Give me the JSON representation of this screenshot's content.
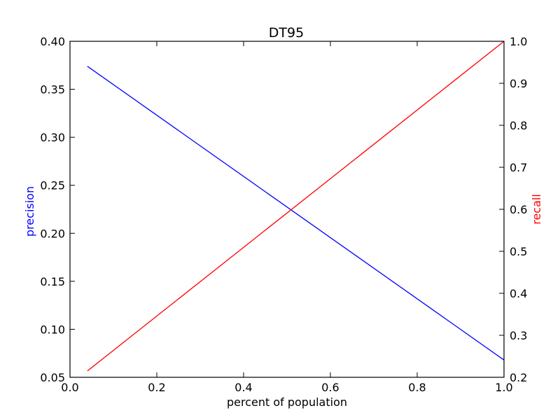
{
  "chart_data": {
    "type": "line",
    "title": "DT95",
    "xlabel": "percent of population",
    "ylabel_left": "precision",
    "ylabel_right": "recall",
    "xlim": [
      0.0,
      1.0
    ],
    "ylim_left": [
      0.05,
      0.4
    ],
    "ylim_right": [
      0.2,
      1.0
    ],
    "xticks": [
      "0.0",
      "0.2",
      "0.4",
      "0.6",
      "0.8",
      "1.0"
    ],
    "yticks_left": [
      "0.05",
      "0.10",
      "0.15",
      "0.20",
      "0.25",
      "0.30",
      "0.35",
      "0.40"
    ],
    "yticks_right": [
      "0.2",
      "0.3",
      "0.4",
      "0.5",
      "0.6",
      "0.7",
      "0.8",
      "0.9",
      "1.0"
    ],
    "grid": false,
    "series": [
      {
        "axis": "left",
        "color": "#0000ff",
        "x": [
          0.04,
          1.0
        ],
        "y": [
          0.374,
          0.068
        ]
      },
      {
        "axis": "right",
        "color": "#ff0000",
        "x": [
          0.04,
          1.0
        ],
        "y": [
          0.215,
          1.0
        ]
      }
    ]
  }
}
